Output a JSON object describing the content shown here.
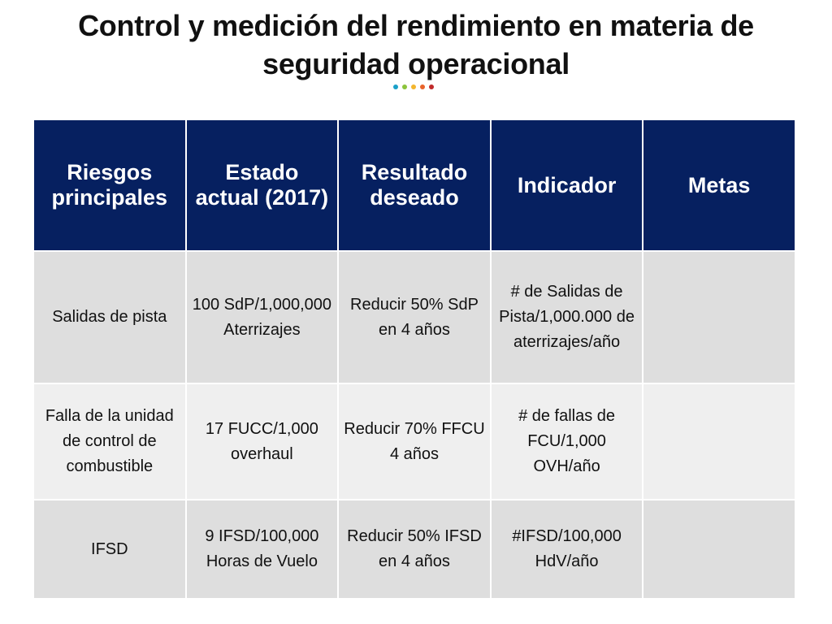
{
  "title": "Control y medición del rendimiento en materia de seguridad operacional",
  "accent_dots": [
    "#1aa0c8",
    "#8cc43c",
    "#f3b62e",
    "#e8632a",
    "#c02a2a"
  ],
  "table": {
    "headers": [
      "Riesgos principales",
      "Estado actual (2017)",
      "Resultado deseado",
      "Indicador",
      "Metas"
    ],
    "rows": [
      [
        "Salidas de pista",
        "100 SdP/1,000,000 Aterrizajes",
        "Reducir 50% SdP en 4 años",
        "# de Salidas de Pista/1,000.000 de aterrizajes/año",
        ""
      ],
      [
        "Falla de la unidad de control de combustible",
        "17 FUCC/1,000 overhaul",
        "Reducir 70% FFCU 4 años",
        "# de fallas de FCU/1,000 OVH/año",
        ""
      ],
      [
        "IFSD",
        "9 IFSD/100,000 Horas de Vuelo",
        "Reducir 50% IFSD en 4 años",
        "#IFSD/100,000 HdV/año",
        ""
      ]
    ]
  },
  "colors": {
    "header_bg": "#062060",
    "row_dark": "#dedede",
    "row_light": "#efefef"
  }
}
